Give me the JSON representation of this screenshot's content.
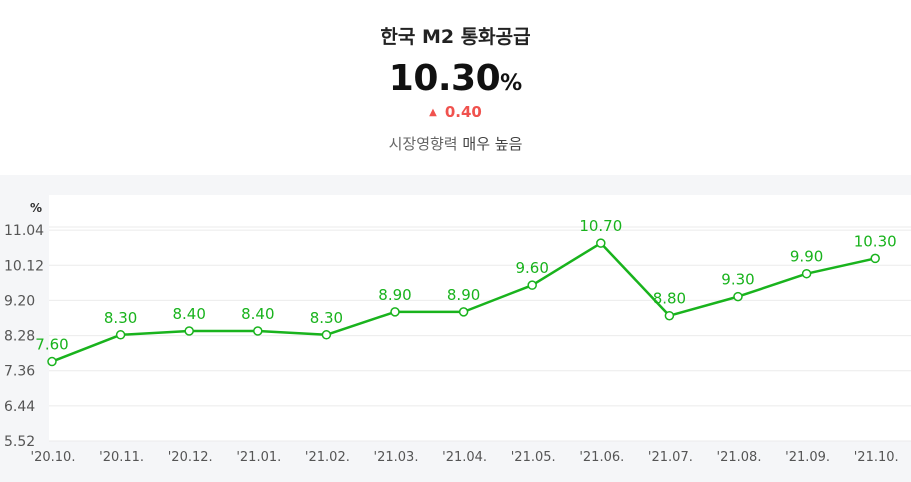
{
  "header": {
    "title": "한국 M2 통화공급",
    "value": "10.30",
    "unit": "%",
    "change": "0.40",
    "change_direction": "up",
    "impact_label": "시장영향력",
    "impact_level": "매우 높음"
  },
  "colors": {
    "line": "#19b31d",
    "change_up": "#f0524e",
    "background_chart": "#f5f6f8"
  },
  "chart_data": {
    "type": "line",
    "y_unit_label": "%",
    "ylim": [
      5.52,
      11.96
    ],
    "y_ticks": [
      "11.04",
      "10.12",
      "9.20",
      "8.28",
      "7.36",
      "6.44",
      "5.52"
    ],
    "categories": [
      "'20.10.",
      "'20.11.",
      "'20.12.",
      "'21.01.",
      "'21.02.",
      "'21.03.",
      "'21.04.",
      "'21.05.",
      "'21.06.",
      "'21.07.",
      "'21.08.",
      "'21.09.",
      "'21.10."
    ],
    "series": [
      {
        "values": [
          7.6,
          8.3,
          8.4,
          8.4,
          8.3,
          8.9,
          8.9,
          9.6,
          10.7,
          8.8,
          9.3,
          9.9,
          10.3
        ],
        "labels": [
          "7.60",
          "8.30",
          "8.40",
          "8.40",
          "8.30",
          "8.90",
          "8.90",
          "9.60",
          "10.70",
          "8.80",
          "9.30",
          "9.90",
          "10.30"
        ]
      }
    ],
    "grid": true,
    "legend": "none"
  }
}
